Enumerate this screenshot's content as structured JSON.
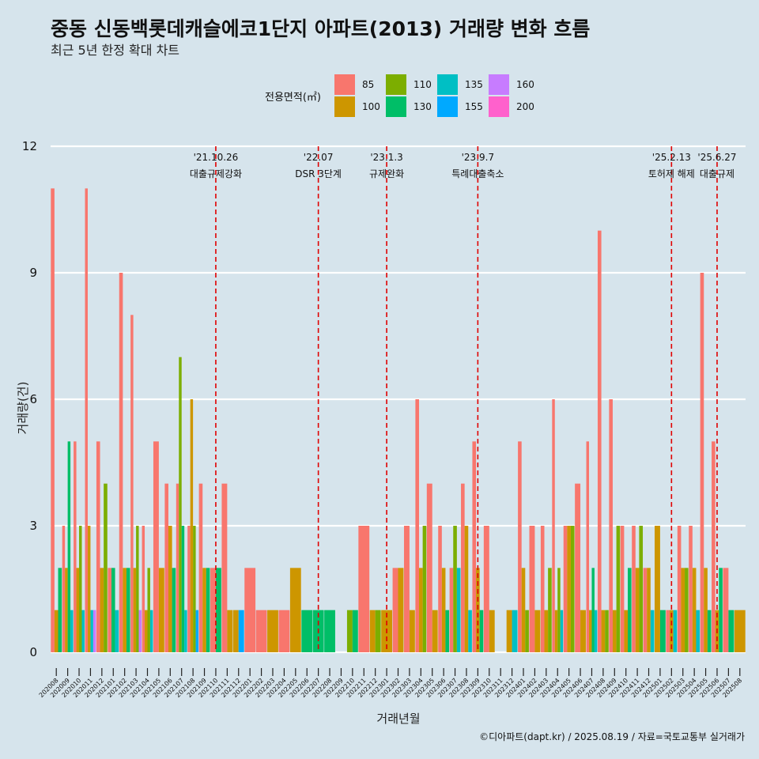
{
  "title": "중동 신동백롯데캐슬에코1단지 아파트(2013) 거래량 변화 흐름",
  "subtitle": "최근 5년 한정 확대 차트",
  "caption": "©디아파트(dapt.kr) / 2025.08.19 / 자료=국토교통부 실거래가",
  "chart_data": {
    "type": "bar",
    "title": "중동 신동백롯데캐슬에코1단지 아파트(2013) 거래량 변화 흐름",
    "xlabel": "거래년월",
    "ylabel": "거래량(건)",
    "ylim": [
      0,
      12
    ],
    "yticks": [
      0,
      3,
      6,
      9,
      12
    ],
    "grid": true,
    "legend": {
      "title": "전용면적(㎡)",
      "placement": "top"
    },
    "series": [
      {
        "name": "85",
        "color": "#f8766d"
      },
      {
        "name": "100",
        "color": "#cd9600"
      },
      {
        "name": "110",
        "color": "#7cae00"
      },
      {
        "name": "130",
        "color": "#00be67"
      },
      {
        "name": "135",
        "color": "#00bfc4"
      },
      {
        "name": "155",
        "color": "#00a9ff"
      },
      {
        "name": "160",
        "color": "#c77cff"
      },
      {
        "name": "200",
        "color": "#ff61cc"
      }
    ],
    "months": [
      {
        "m": "202008",
        "bars": [
          [
            "85",
            11
          ],
          [
            "100",
            1
          ],
          [
            "130",
            2
          ]
        ]
      },
      {
        "m": "202009",
        "bars": [
          [
            "85",
            3
          ],
          [
            "100",
            2
          ],
          [
            "130",
            5
          ],
          [
            "135",
            1
          ]
        ]
      },
      {
        "m": "202010",
        "bars": [
          [
            "85",
            5
          ],
          [
            "100",
            2
          ],
          [
            "110",
            3
          ],
          [
            "135",
            1
          ]
        ]
      },
      {
        "m": "202011",
        "bars": [
          [
            "85",
            11
          ],
          [
            "100",
            3
          ],
          [
            "135",
            1
          ],
          [
            "160",
            1
          ]
        ]
      },
      {
        "m": "202012",
        "bars": [
          [
            "85",
            5
          ],
          [
            "100",
            2
          ],
          [
            "110",
            4
          ]
        ]
      },
      {
        "m": "202101",
        "bars": [
          [
            "85",
            2
          ],
          [
            "130",
            2
          ],
          [
            "135",
            1
          ]
        ]
      },
      {
        "m": "202102",
        "bars": [
          [
            "85",
            9
          ],
          [
            "100",
            2
          ],
          [
            "130",
            2
          ]
        ]
      },
      {
        "m": "202103",
        "bars": [
          [
            "85",
            8
          ],
          [
            "100",
            2
          ],
          [
            "110",
            3
          ],
          [
            "160",
            1
          ]
        ]
      },
      {
        "m": "202104",
        "bars": [
          [
            "85",
            3
          ],
          [
            "100",
            1
          ],
          [
            "110",
            2
          ],
          [
            "135",
            1
          ]
        ]
      },
      {
        "m": "202105",
        "bars": [
          [
            "85",
            5
          ],
          [
            "100",
            2
          ]
        ]
      },
      {
        "m": "202106",
        "bars": [
          [
            "85",
            4
          ],
          [
            "100",
            3
          ],
          [
            "130",
            2
          ]
        ]
      },
      {
        "m": "202107",
        "bars": [
          [
            "85",
            4
          ],
          [
            "110",
            7
          ],
          [
            "130",
            3
          ],
          [
            "135",
            1
          ]
        ]
      },
      {
        "m": "202108",
        "bars": [
          [
            "85",
            3
          ],
          [
            "100",
            6
          ],
          [
            "110",
            3
          ],
          [
            "155",
            1
          ]
        ]
      },
      {
        "m": "202109",
        "bars": [
          [
            "85",
            4
          ],
          [
            "100",
            2
          ],
          [
            "130",
            2
          ]
        ]
      },
      {
        "m": "202110",
        "bars": [
          [
            "85",
            2
          ],
          [
            "130",
            2
          ]
        ]
      },
      {
        "m": "202111",
        "bars": [
          [
            "85",
            4
          ],
          [
            "100",
            1
          ]
        ]
      },
      {
        "m": "202112",
        "bars": [
          [
            "100",
            1
          ],
          [
            "155",
            1
          ]
        ]
      },
      {
        "m": "202201",
        "bars": [
          [
            "85",
            2
          ]
        ]
      },
      {
        "m": "202202",
        "bars": [
          [
            "85",
            1
          ]
        ]
      },
      {
        "m": "202203",
        "bars": [
          [
            "100",
            1
          ]
        ]
      },
      {
        "m": "202204",
        "bars": [
          [
            "85",
            1
          ]
        ]
      },
      {
        "m": "202205",
        "bars": [
          [
            "100",
            2
          ]
        ]
      },
      {
        "m": "202206",
        "bars": [
          [
            "130",
            1
          ]
        ]
      },
      {
        "m": "202207",
        "bars": [
          [
            "130",
            1
          ]
        ]
      },
      {
        "m": "202208",
        "bars": [
          [
            "130",
            1
          ]
        ]
      },
      {
        "m": "202209",
        "bars": []
      },
      {
        "m": "202210",
        "bars": [
          [
            "110",
            1
          ],
          [
            "130",
            1
          ]
        ]
      },
      {
        "m": "202211",
        "bars": [
          [
            "85",
            3
          ]
        ]
      },
      {
        "m": "202212",
        "bars": [
          [
            "100",
            1
          ],
          [
            "110",
            1
          ]
        ]
      },
      {
        "m": "202301",
        "bars": [
          [
            "100",
            1
          ]
        ]
      },
      {
        "m": "202302",
        "bars": [
          [
            "85",
            2
          ],
          [
            "100",
            2
          ]
        ]
      },
      {
        "m": "202303",
        "bars": [
          [
            "85",
            3
          ],
          [
            "100",
            1
          ]
        ]
      },
      {
        "m": "202304",
        "bars": [
          [
            "85",
            6
          ],
          [
            "100",
            2
          ],
          [
            "110",
            3
          ]
        ]
      },
      {
        "m": "202305",
        "bars": [
          [
            "85",
            4
          ],
          [
            "100",
            1
          ]
        ]
      },
      {
        "m": "202306",
        "bars": [
          [
            "85",
            3
          ],
          [
            "100",
            2
          ],
          [
            "130",
            1
          ]
        ]
      },
      {
        "m": "202307",
        "bars": [
          [
            "85",
            2
          ],
          [
            "110",
            3
          ],
          [
            "135",
            2
          ]
        ]
      },
      {
        "m": "202308",
        "bars": [
          [
            "85",
            4
          ],
          [
            "100",
            3
          ],
          [
            "135",
            1
          ]
        ]
      },
      {
        "m": "202309",
        "bars": [
          [
            "85",
            5
          ],
          [
            "100",
            2
          ],
          [
            "130",
            1
          ]
        ]
      },
      {
        "m": "202310",
        "bars": [
          [
            "85",
            3
          ],
          [
            "100",
            1
          ]
        ]
      },
      {
        "m": "202311",
        "bars": []
      },
      {
        "m": "202312",
        "bars": [
          [
            "100",
            1
          ],
          [
            "135",
            1
          ]
        ]
      },
      {
        "m": "202401",
        "bars": [
          [
            "85",
            5
          ],
          [
            "100",
            2
          ],
          [
            "110",
            1
          ]
        ]
      },
      {
        "m": "202402",
        "bars": [
          [
            "85",
            3
          ],
          [
            "100",
            1
          ]
        ]
      },
      {
        "m": "202403",
        "bars": [
          [
            "85",
            3
          ],
          [
            "100",
            1
          ],
          [
            "110",
            2
          ]
        ]
      },
      {
        "m": "202404",
        "bars": [
          [
            "85",
            6
          ],
          [
            "100",
            1
          ],
          [
            "110",
            2
          ],
          [
            "135",
            1
          ]
        ]
      },
      {
        "m": "202405",
        "bars": [
          [
            "85",
            3
          ],
          [
            "100",
            3
          ],
          [
            "110",
            3
          ]
        ]
      },
      {
        "m": "202406",
        "bars": [
          [
            "85",
            4
          ],
          [
            "100",
            1
          ]
        ]
      },
      {
        "m": "202407",
        "bars": [
          [
            "85",
            5
          ],
          [
            "100",
            1
          ],
          [
            "130",
            2
          ],
          [
            "135",
            1
          ]
        ]
      },
      {
        "m": "202408",
        "bars": [
          [
            "85",
            10
          ],
          [
            "100",
            1
          ],
          [
            "110",
            1
          ]
        ]
      },
      {
        "m": "202409",
        "bars": [
          [
            "85",
            6
          ],
          [
            "100",
            1
          ],
          [
            "110",
            3
          ]
        ]
      },
      {
        "m": "202410",
        "bars": [
          [
            "85",
            3
          ],
          [
            "100",
            1
          ],
          [
            "130",
            2
          ]
        ]
      },
      {
        "m": "202411",
        "bars": [
          [
            "85",
            3
          ],
          [
            "100",
            2
          ],
          [
            "110",
            3
          ]
        ]
      },
      {
        "m": "202412",
        "bars": [
          [
            "85",
            2
          ],
          [
            "100",
            2
          ],
          [
            "135",
            1
          ]
        ]
      },
      {
        "m": "202501",
        "bars": [
          [
            "100",
            3
          ],
          [
            "130",
            1
          ]
        ]
      },
      {
        "m": "202502",
        "bars": [
          [
            "85",
            1
          ],
          [
            "100",
            1
          ],
          [
            "135",
            1
          ]
        ]
      },
      {
        "m": "202503",
        "bars": [
          [
            "85",
            3
          ],
          [
            "100",
            2
          ],
          [
            "110",
            2
          ]
        ]
      },
      {
        "m": "202504",
        "bars": [
          [
            "85",
            3
          ],
          [
            "100",
            2
          ],
          [
            "135",
            1
          ]
        ]
      },
      {
        "m": "202505",
        "bars": [
          [
            "85",
            9
          ],
          [
            "100",
            2
          ],
          [
            "130",
            1
          ]
        ]
      },
      {
        "m": "202506",
        "bars": [
          [
            "85",
            5
          ],
          [
            "100",
            1
          ],
          [
            "130",
            2
          ]
        ]
      },
      {
        "m": "202507",
        "bars": [
          [
            "85",
            2
          ],
          [
            "130",
            1
          ]
        ]
      },
      {
        "m": "202508",
        "bars": [
          [
            "100",
            1
          ]
        ]
      }
    ],
    "annotations": [
      {
        "month": "202110",
        "date": "'21.10.26",
        "text": "대출규제강화"
      },
      {
        "month": "202207",
        "date": "'22.07",
        "text": "DSR 3단계"
      },
      {
        "month": "202301",
        "date": "'23.1.3",
        "text": "규제완화"
      },
      {
        "month": "202309",
        "date": "'23.9.7",
        "text": "특례대출축소"
      },
      {
        "month": "202502",
        "date": "'25.2.13",
        "text": "토허제 해제"
      },
      {
        "month": "202506",
        "date": "'25.6.27",
        "text": "대출규제"
      }
    ]
  }
}
